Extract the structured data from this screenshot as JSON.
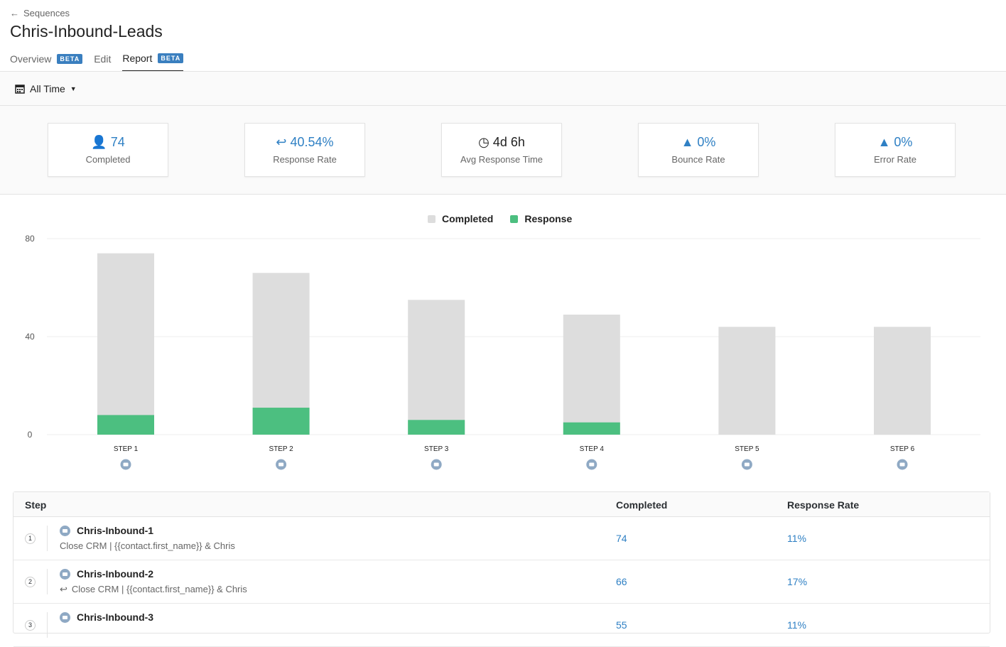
{
  "header": {
    "back_label": "Sequences",
    "title": "Chris-Inbound-Leads",
    "tabs": [
      {
        "label": "Overview",
        "badge": "BETA"
      },
      {
        "label": "Edit"
      },
      {
        "label": "Report",
        "badge": "BETA",
        "active": true
      }
    ]
  },
  "toolbar": {
    "date_filter": "All Time"
  },
  "stats": [
    {
      "icon": "user-icon",
      "value": "74",
      "label": "Completed"
    },
    {
      "icon": "reply-icon",
      "value": "40.54%",
      "label": "Response Rate"
    },
    {
      "icon": "clock-icon",
      "value": "4d 6h",
      "label": "Avg Response Time"
    },
    {
      "icon": "warning-icon",
      "value": "0%",
      "label": "Bounce Rate"
    },
    {
      "icon": "warning-icon",
      "value": "0%",
      "label": "Error Rate"
    }
  ],
  "chart_data": {
    "type": "bar",
    "stacked": "overlay",
    "categories": [
      "STEP 1",
      "STEP 2",
      "STEP 3",
      "STEP 4",
      "STEP 5",
      "STEP 6"
    ],
    "series": [
      {
        "name": "Completed",
        "values": [
          74,
          66,
          55,
          49,
          44,
          44
        ],
        "color": "#dddddd"
      },
      {
        "name": "Response",
        "values": [
          8,
          11,
          6,
          5,
          0,
          0
        ],
        "color": "#4cbf80"
      }
    ],
    "yticks": [
      0,
      40,
      80
    ],
    "ylim": [
      0,
      80
    ],
    "grid": true,
    "legend": "top-center"
  },
  "table": {
    "headers": [
      "Step",
      "Completed",
      "Response Rate"
    ],
    "rows": [
      {
        "num": "1",
        "name": "Chris-Inbound-1",
        "subject": "Close CRM | {{contact.first_name}} & Chris",
        "reply": false,
        "completed": "74",
        "response_rate": "11%"
      },
      {
        "num": "2",
        "name": "Chris-Inbound-2",
        "subject": "Close CRM | {{contact.first_name}} & Chris",
        "reply": true,
        "completed": "66",
        "response_rate": "17%"
      },
      {
        "num": "3",
        "name": "Chris-Inbound-3",
        "subject": "",
        "reply": false,
        "completed": "55",
        "response_rate": "11%"
      }
    ]
  }
}
